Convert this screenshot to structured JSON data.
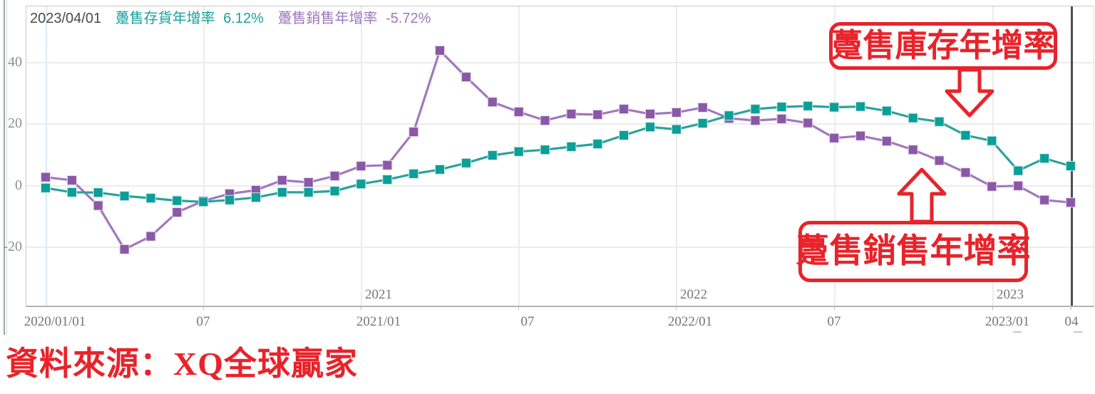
{
  "header": {
    "date": "2023/04/01",
    "inventory_label": "躉售存貨年增率",
    "inventory_value": "6.12%",
    "sales_label": "躉售銷售年增率",
    "sales_value": "-5.72%"
  },
  "annotations": {
    "inventory_box": "躉售庫存年增率",
    "sales_box": "躉售銷售年增率"
  },
  "source": "資料來源：XQ全球贏家",
  "colors": {
    "teal": "#0c9e98",
    "teal_line": "#2aa39d",
    "purple": "#8a58a7",
    "purple_line": "#a178bd",
    "annotation_red": "#e8232a",
    "cursor": "#474f56"
  },
  "chart_data": {
    "type": "line",
    "title": "",
    "xlabel": "",
    "ylabel": "",
    "grid": true,
    "ylim": [
      -39,
      58
    ],
    "yticks": [
      40,
      20,
      0,
      -20
    ],
    "xticks": [
      "2020/01/01",
      "07",
      "2021/01",
      "07",
      "2022/01",
      "07",
      "2023/01",
      "04"
    ],
    "year_labels": [
      "2021",
      "2022",
      "2023"
    ],
    "x": [
      "2020/01",
      "2020/02",
      "2020/03",
      "2020/04",
      "2020/05",
      "2020/06",
      "2020/07",
      "2020/08",
      "2020/09",
      "2020/10",
      "2020/11",
      "2020/12",
      "2021/01",
      "2021/02",
      "2021/03",
      "2021/04",
      "2021/05",
      "2021/06",
      "2021/07",
      "2021/08",
      "2021/09",
      "2021/10",
      "2021/11",
      "2021/12",
      "2022/01",
      "2022/02",
      "2022/03",
      "2022/04",
      "2022/05",
      "2022/06",
      "2022/07",
      "2022/08",
      "2022/09",
      "2022/10",
      "2022/11",
      "2022/12",
      "2023/01",
      "2023/02",
      "2023/03",
      "2023/04"
    ],
    "series": [
      {
        "name": "躉售銷售年增率",
        "data_name": "wholesale-sales-yoy",
        "line_color": "#a178bd",
        "marker_color": "#8a58a7",
        "marker_edge": "#e4d7ec",
        "values": [
          2.5,
          1.5,
          -6.7,
          -20.9,
          -16.7,
          -8.9,
          -5.2,
          -2.9,
          -1.7,
          1.5,
          0.8,
          2.9,
          6.1,
          6.4,
          17.2,
          43.6,
          35.0,
          26.9,
          23.7,
          20.9,
          23.0,
          22.8,
          24.6,
          23.0,
          23.5,
          25.1,
          21.6,
          20.9,
          21.4,
          20.1,
          15.2,
          15.9,
          14.2,
          11.4,
          7.9,
          4.0,
          -0.5,
          -0.3,
          -4.9,
          -5.72
        ]
      },
      {
        "name": "躉售存貨年增率",
        "data_name": "wholesale-inventory-yoy",
        "line_color": "#2aa39d",
        "marker_color": "#0c9e98",
        "marker_edge": "#cdeae6",
        "values": [
          -1.0,
          -2.4,
          -2.5,
          -3.6,
          -4.3,
          -5.1,
          -5.5,
          -4.9,
          -4.1,
          -2.4,
          -2.4,
          -2.0,
          0.3,
          1.7,
          3.6,
          5.0,
          7.1,
          9.6,
          10.8,
          11.4,
          12.4,
          13.3,
          16.1,
          18.8,
          18.0,
          20.0,
          22.5,
          24.6,
          25.3,
          25.6,
          25.2,
          25.4,
          24.0,
          21.7,
          20.5,
          16.1,
          14.3,
          4.6,
          8.6,
          6.12
        ]
      }
    ]
  }
}
